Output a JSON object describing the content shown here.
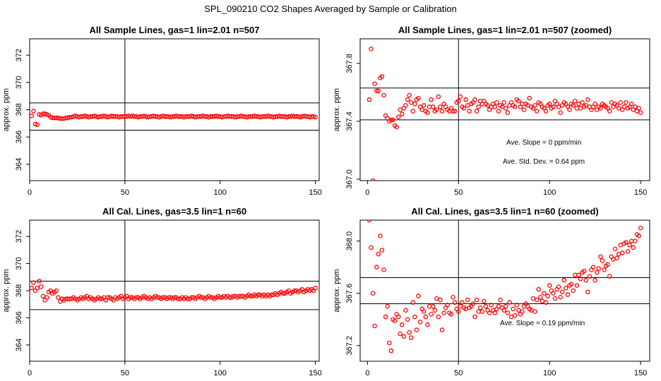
{
  "page": {
    "title": "SPL_090210  CO2 Shapes Averaged by Sample or Calibration"
  },
  "chart_data": [
    {
      "type": "scatter",
      "title": "All Sample Lines, gas=1 lin=2.01 n=507",
      "ylabel": "approx. ppm",
      "xlim": [
        0,
        152
      ],
      "ylim": [
        362.8,
        373.2
      ],
      "xticks": [
        "0",
        "50",
        "100",
        "150"
      ],
      "yticks": [
        "364",
        "366",
        "368",
        "370",
        "372"
      ],
      "hlines": [
        368.5,
        366.5
      ],
      "vline": 50,
      "color": "#ff0000",
      "annotations": [],
      "x": [
        1,
        2,
        3,
        4,
        5,
        6,
        7,
        8,
        9,
        10,
        11,
        12,
        13,
        14,
        15,
        16,
        17,
        18,
        19,
        20,
        21,
        22,
        23,
        24,
        25,
        26,
        27,
        28,
        29,
        30,
        31,
        32,
        33,
        34,
        35,
        36,
        37,
        38,
        39,
        40,
        41,
        42,
        43,
        44,
        45,
        46,
        47,
        48,
        49,
        50,
        51,
        52,
        53,
        54,
        55,
        56,
        57,
        58,
        59,
        60,
        61,
        62,
        63,
        64,
        65,
        66,
        67,
        68,
        69,
        70,
        71,
        72,
        73,
        74,
        75,
        76,
        77,
        78,
        79,
        80,
        81,
        82,
        83,
        84,
        85,
        86,
        87,
        88,
        89,
        90,
        91,
        92,
        93,
        94,
        95,
        96,
        97,
        98,
        99,
        100,
        101,
        102,
        103,
        104,
        105,
        106,
        107,
        108,
        109,
        110,
        111,
        112,
        113,
        114,
        115,
        116,
        117,
        118,
        119,
        120,
        121,
        122,
        123,
        124,
        125,
        126,
        127,
        128,
        129,
        130,
        131,
        132,
        133,
        134,
        135,
        136,
        137,
        138,
        139,
        140,
        141,
        142,
        143,
        144,
        145,
        146,
        147,
        148,
        149,
        150
      ],
      "y": [
        367.55,
        367.9,
        366.95,
        366.9,
        367.65,
        367.6,
        367.7,
        367.7,
        367.65,
        367.6,
        367.45,
        367.4,
        367.4,
        367.4,
        367.4,
        367.35,
        367.35,
        367.35,
        367.4,
        367.4,
        367.45,
        367.45,
        367.5,
        367.55,
        367.5,
        367.45,
        367.5,
        367.5,
        367.55,
        367.5,
        367.45,
        367.5,
        367.5,
        367.55,
        367.5,
        367.45,
        367.5,
        367.5,
        367.55,
        367.5,
        367.45,
        367.5,
        367.55,
        367.5,
        367.5,
        367.5,
        367.45,
        367.5,
        367.5,
        367.5,
        367.5,
        367.55,
        367.5,
        367.55,
        367.5,
        367.5,
        367.45,
        367.5,
        367.5,
        367.55,
        367.5,
        367.45,
        367.5,
        367.5,
        367.55,
        367.5,
        367.5,
        367.45,
        367.5,
        367.55,
        367.5,
        367.5,
        367.5,
        367.45,
        367.5,
        367.5,
        367.55,
        367.5,
        367.5,
        367.5,
        367.45,
        367.5,
        367.5,
        367.5,
        367.55,
        367.5,
        367.45,
        367.5,
        367.5,
        367.5,
        367.55,
        367.5,
        367.5,
        367.45,
        367.5,
        367.5,
        367.5,
        367.55,
        367.5,
        367.5,
        367.45,
        367.5,
        367.5,
        367.55,
        367.5,
        367.5,
        367.5,
        367.45,
        367.5,
        367.5,
        367.55,
        367.5,
        367.5,
        367.45,
        367.5,
        367.5,
        367.5,
        367.55,
        367.5,
        367.5,
        367.45,
        367.5,
        367.5,
        367.5,
        367.55,
        367.5,
        367.5,
        367.45,
        367.5,
        367.5,
        367.55,
        367.5,
        367.5,
        367.5,
        367.45,
        367.5,
        367.5,
        367.55,
        367.5,
        367.5,
        367.5,
        367.45,
        367.5,
        367.55,
        367.5,
        367.5,
        367.45,
        367.5,
        367.5,
        367.45
      ]
    },
    {
      "type": "scatter",
      "title": "All Sample Lines, gas=1 lin=2.01 n=507 (zoomed)",
      "ylabel": "approx. ppm",
      "xlim": [
        -4,
        155
      ],
      "ylim": [
        366.99,
        367.97
      ],
      "xticks": [
        "0",
        "50",
        "100",
        "150"
      ],
      "yticks": [
        "367.0",
        "367.4",
        "367.8"
      ],
      "hlines": [
        367.63,
        367.41
      ],
      "vline": 50,
      "color": "#ff0000",
      "annotations": [
        "Ave. Slope =  0  ppm/min",
        "Ave. Std. Dev. =  0.64  ppm"
      ],
      "x": [
        1,
        2,
        3,
        4,
        5,
        6,
        7,
        8,
        9,
        10,
        11,
        12,
        13,
        14,
        15,
        16,
        17,
        18,
        19,
        20,
        21,
        22,
        23,
        24,
        25,
        26,
        27,
        28,
        29,
        30,
        31,
        32,
        33,
        34,
        35,
        36,
        37,
        38,
        39,
        40,
        41,
        42,
        43,
        44,
        45,
        46,
        47,
        48,
        49,
        50,
        51,
        52,
        53,
        54,
        55,
        56,
        57,
        58,
        59,
        60,
        61,
        62,
        63,
        64,
        65,
        66,
        67,
        68,
        69,
        70,
        71,
        72,
        73,
        74,
        75,
        76,
        77,
        78,
        79,
        80,
        81,
        82,
        83,
        84,
        85,
        86,
        87,
        88,
        89,
        90,
        91,
        92,
        93,
        94,
        95,
        96,
        97,
        98,
        99,
        100,
        101,
        102,
        103,
        104,
        105,
        106,
        107,
        108,
        109,
        110,
        111,
        112,
        113,
        114,
        115,
        116,
        117,
        118,
        119,
        120,
        121,
        122,
        123,
        124,
        125,
        126,
        127,
        128,
        129,
        130,
        131,
        132,
        133,
        134,
        135,
        136,
        137,
        138,
        139,
        140,
        141,
        142,
        143,
        144,
        145,
        146,
        147,
        148,
        149,
        150
      ],
      "y": [
        367.55,
        367.9,
        366.99,
        367.66,
        367.61,
        367.61,
        367.7,
        367.71,
        367.58,
        367.44,
        367.42,
        367.4,
        367.41,
        367.41,
        367.37,
        367.36,
        367.43,
        367.48,
        367.45,
        367.49,
        367.51,
        367.55,
        367.58,
        367.53,
        367.47,
        367.52,
        367.55,
        367.56,
        367.5,
        367.48,
        367.51,
        367.47,
        367.46,
        367.5,
        367.55,
        367.5,
        367.47,
        367.48,
        367.57,
        367.5,
        367.47,
        367.52,
        367.5,
        367.48,
        367.47,
        367.49,
        367.47,
        367.47,
        367.53,
        367.54,
        367.57,
        367.5,
        367.49,
        367.55,
        367.51,
        367.47,
        367.52,
        367.53,
        367.55,
        367.47,
        367.5,
        367.54,
        367.52,
        367.54,
        367.52,
        367.51,
        367.48,
        367.5,
        367.52,
        367.5,
        367.53,
        367.47,
        367.51,
        367.5,
        367.53,
        367.49,
        367.46,
        367.51,
        367.53,
        367.51,
        367.5,
        367.55,
        367.54,
        367.5,
        367.52,
        367.48,
        367.52,
        367.51,
        367.56,
        367.5,
        367.49,
        367.51,
        367.47,
        367.53,
        367.52,
        367.5,
        367.49,
        367.47,
        367.51,
        367.52,
        367.49,
        367.5,
        367.54,
        367.52,
        367.5,
        367.46,
        367.51,
        367.53,
        367.52,
        367.5,
        367.48,
        367.52,
        367.51,
        367.54,
        367.49,
        367.52,
        367.49,
        367.53,
        367.5,
        367.51,
        367.55,
        367.5,
        367.48,
        367.5,
        367.52,
        367.48,
        367.5,
        367.49,
        367.52,
        367.51,
        367.5,
        367.49,
        367.47,
        367.53,
        367.5,
        367.52,
        367.51,
        367.49,
        367.53,
        367.48,
        367.5,
        367.53,
        367.49,
        367.5,
        367.52,
        367.48,
        367.5,
        367.47,
        367.49,
        367.46
      ]
    },
    {
      "type": "scatter",
      "title": "All Cal. Lines, gas=3.5 lin=1 n=60",
      "ylabel": "approx. ppm",
      "xlim": [
        0,
        152
      ],
      "ylim": [
        362.8,
        373.2
      ],
      "xticks": [
        "0",
        "50",
        "100",
        "150"
      ],
      "yticks": [
        "364",
        "366",
        "368",
        "370",
        "372"
      ],
      "hlines": [
        368.7,
        366.6
      ],
      "vline": 50,
      "color": "#ff0000",
      "annotations": [],
      "x": [
        1,
        2,
        3,
        4,
        5,
        6,
        7,
        8,
        9,
        10,
        11,
        12,
        13,
        14,
        15,
        16,
        17,
        18,
        19,
        20,
        21,
        22,
        23,
        24,
        25,
        26,
        27,
        28,
        29,
        30,
        31,
        32,
        33,
        34,
        35,
        36,
        37,
        38,
        39,
        40,
        41,
        42,
        43,
        44,
        45,
        46,
        47,
        48,
        49,
        50,
        51,
        52,
        53,
        54,
        55,
        56,
        57,
        58,
        59,
        60,
        61,
        62,
        63,
        64,
        65,
        66,
        67,
        68,
        69,
        70,
        71,
        72,
        73,
        74,
        75,
        76,
        77,
        78,
        79,
        80,
        81,
        82,
        83,
        84,
        85,
        86,
        87,
        88,
        89,
        90,
        91,
        92,
        93,
        94,
        95,
        96,
        97,
        98,
        99,
        100,
        101,
        102,
        103,
        104,
        105,
        106,
        107,
        108,
        109,
        110,
        111,
        112,
        113,
        114,
        115,
        116,
        117,
        118,
        119,
        120,
        121,
        122,
        123,
        124,
        125,
        126,
        127,
        128,
        129,
        130,
        131,
        132,
        133,
        134,
        135,
        136,
        137,
        138,
        139,
        140,
        141,
        142,
        143,
        144,
        145,
        146,
        147,
        148,
        149,
        150
      ],
      "y": [
        368.2,
        368.6,
        368.0,
        368.2,
        368.7,
        368.3,
        367.6,
        367.3,
        367.5,
        367.9,
        368.0,
        367.8,
        367.9,
        368.0,
        367.5,
        367.2,
        367.4,
        367.3,
        367.4,
        367.4,
        367.4,
        367.4,
        367.5,
        367.4,
        367.3,
        367.4,
        367.5,
        367.4,
        367.5,
        367.6,
        367.4,
        367.5,
        367.4,
        367.3,
        367.4,
        367.5,
        367.4,
        367.4,
        367.5,
        367.3,
        367.5,
        367.5,
        367.4,
        367.3,
        367.5,
        367.4,
        367.5,
        367.6,
        367.4,
        367.5,
        367.6,
        367.4,
        367.5,
        367.5,
        367.4,
        367.5,
        367.5,
        367.4,
        367.5,
        367.6,
        367.5,
        367.4,
        367.5,
        367.4,
        367.5,
        367.6,
        367.5,
        367.5,
        367.4,
        367.5,
        367.5,
        367.4,
        367.5,
        367.5,
        367.4,
        367.5,
        367.5,
        367.4,
        367.4,
        367.5,
        367.4,
        367.5,
        367.4,
        367.4,
        367.5,
        367.5,
        367.4,
        367.5,
        367.6,
        367.5,
        367.5,
        367.4,
        367.5,
        367.6,
        367.5,
        367.5,
        367.4,
        367.5,
        367.6,
        367.5,
        367.5,
        367.6,
        367.5,
        367.6,
        367.5,
        367.5,
        367.6,
        367.6,
        367.5,
        367.6,
        367.6,
        367.6,
        367.5,
        367.6,
        367.7,
        367.6,
        367.6,
        367.7,
        367.6,
        367.7,
        367.7,
        367.6,
        367.7,
        367.6,
        367.7,
        367.6,
        367.7,
        367.7,
        367.8,
        367.7,
        367.8,
        367.9,
        367.8,
        367.8,
        367.9,
        368.0,
        367.8,
        367.9,
        368.0,
        368.0,
        367.9,
        368.0,
        368.1,
        367.9,
        368.0,
        368.1,
        368.0,
        368.1,
        368.0,
        368.2
      ]
    },
    {
      "type": "scatter",
      "title": "All Cal. Lines, gas=3.5 lin=1 n=60 (zoomed)",
      "ylabel": "approx. ppm",
      "xlim": [
        -4,
        155
      ],
      "ylim": [
        367.08,
        368.16
      ],
      "xticks": [
        "0",
        "50",
        "100",
        "150"
      ],
      "yticks": [
        "367.2",
        "367.6",
        "368.0"
      ],
      "hlines": [
        367.72,
        367.52
      ],
      "vline": 50,
      "color": "#ff0000",
      "annotations": [
        "Ave. Slope =  0.19  ppm/min"
      ],
      "x": [
        1,
        2,
        3,
        4,
        5,
        6,
        7,
        8,
        9,
        10,
        11,
        12,
        13,
        14,
        15,
        16,
        17,
        18,
        19,
        20,
        21,
        22,
        23,
        24,
        25,
        26,
        27,
        28,
        29,
        30,
        31,
        32,
        33,
        34,
        35,
        36,
        37,
        38,
        39,
        40,
        41,
        42,
        43,
        44,
        45,
        46,
        47,
        48,
        49,
        50,
        51,
        52,
        53,
        54,
        55,
        56,
        57,
        58,
        59,
        60,
        61,
        62,
        63,
        64,
        65,
        66,
        67,
        68,
        69,
        70,
        71,
        72,
        73,
        74,
        75,
        76,
        77,
        78,
        79,
        80,
        81,
        82,
        83,
        84,
        85,
        86,
        87,
        88,
        89,
        90,
        91,
        92,
        93,
        94,
        95,
        96,
        97,
        98,
        99,
        100,
        101,
        102,
        103,
        104,
        105,
        106,
        107,
        108,
        109,
        110,
        111,
        112,
        113,
        114,
        115,
        116,
        117,
        118,
        119,
        120,
        121,
        122,
        123,
        124,
        125,
        126,
        127,
        128,
        129,
        130,
        131,
        132,
        133,
        134,
        135,
        136,
        137,
        138,
        139,
        140,
        141,
        142,
        143,
        144,
        145,
        146,
        147,
        148,
        149,
        150
      ],
      "y": [
        368.16,
        367.95,
        367.6,
        367.35,
        367.8,
        367.9,
        368.04,
        367.93,
        367.78,
        367.42,
        367.5,
        367.22,
        367.16,
        367.4,
        367.39,
        367.44,
        367.42,
        367.29,
        367.36,
        367.27,
        367.47,
        367.4,
        367.3,
        367.26,
        367.53,
        367.42,
        367.32,
        367.58,
        367.38,
        367.48,
        367.46,
        367.42,
        367.36,
        367.5,
        367.44,
        367.5,
        367.47,
        367.56,
        367.42,
        367.55,
        367.32,
        367.45,
        367.49,
        367.51,
        367.45,
        367.44,
        367.57,
        367.53,
        367.48,
        367.46,
        367.5,
        367.53,
        367.49,
        367.48,
        367.55,
        367.49,
        367.5,
        367.52,
        367.42,
        367.55,
        367.46,
        367.49,
        367.46,
        367.54,
        367.5,
        367.47,
        367.45,
        367.51,
        367.47,
        367.45,
        367.48,
        367.5,
        367.55,
        367.49,
        367.47,
        367.5,
        367.45,
        367.53,
        367.42,
        367.48,
        367.43,
        367.51,
        367.47,
        367.44,
        367.46,
        367.5,
        367.52,
        367.5,
        367.48,
        367.47,
        367.56,
        367.46,
        367.55,
        367.63,
        367.57,
        367.54,
        367.6,
        367.53,
        367.58,
        367.66,
        367.62,
        367.6,
        367.56,
        367.63,
        367.65,
        367.57,
        367.61,
        367.7,
        367.64,
        367.59,
        367.66,
        367.67,
        367.62,
        367.74,
        367.66,
        367.74,
        367.71,
        367.76,
        367.77,
        367.7,
        367.61,
        367.73,
        367.78,
        367.8,
        367.7,
        367.76,
        367.79,
        367.88,
        367.85,
        367.78,
        367.81,
        367.82,
        367.73,
        367.88,
        367.86,
        367.94,
        367.87,
        367.9,
        367.97,
        367.91,
        367.98,
        367.99,
        367.92,
        367.97,
        368.0,
        367.95,
        368.0,
        368.05,
        368.04,
        368.1
      ]
    }
  ]
}
